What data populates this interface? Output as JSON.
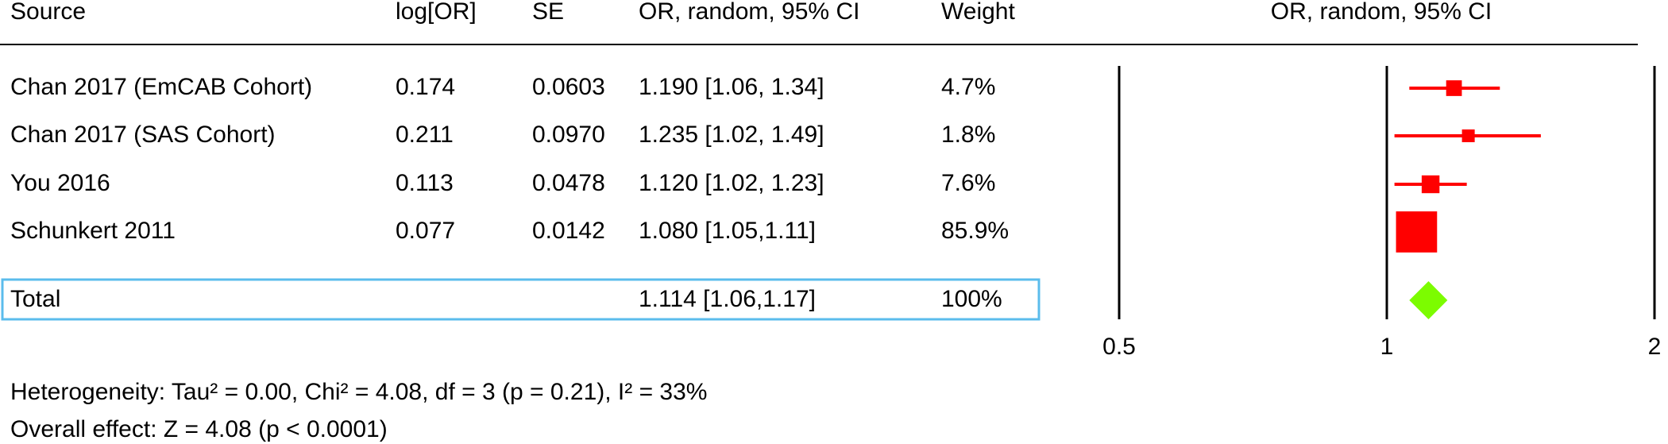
{
  "chart_data": {
    "type": "forest",
    "columns": [
      "Source",
      "log[OR]",
      "SE",
      "OR, random, 95% CI",
      "Weight"
    ],
    "plot_title": "OR, random, 95% CI",
    "studies": [
      {
        "source": "Chan 2017 (EmCAB Cohort)",
        "log_or": "0.174",
        "se": "0.0603",
        "or": 1.19,
        "ci_low": 1.06,
        "ci_high": 1.34,
        "or_label": "1.190 [1.06, 1.34]",
        "weight": 4.7,
        "weight_label": "4.7%"
      },
      {
        "source": "Chan 2017 (SAS Cohort)",
        "log_or": "0.211",
        "se": "0.0970",
        "or": 1.235,
        "ci_low": 1.02,
        "ci_high": 1.49,
        "or_label": "1.235 [1.02, 1.49]",
        "weight": 1.8,
        "weight_label": "1.8%"
      },
      {
        "source": "You 2016",
        "log_or": "0.113",
        "se": "0.0478",
        "or": 1.12,
        "ci_low": 1.02,
        "ci_high": 1.23,
        "or_label": "1.120 [1.02, 1.23]",
        "weight": 7.6,
        "weight_label": "7.6%"
      },
      {
        "source": "Schunkert 2011",
        "log_or": "0.077",
        "se": "0.0142",
        "or": 1.08,
        "ci_low": 1.05,
        "ci_high": 1.11,
        "or_label": "1.080 [1.05,1.11]",
        "weight": 85.9,
        "weight_label": "85.9%"
      }
    ],
    "total": {
      "source": "Total",
      "or": 1.114,
      "ci_low": 1.06,
      "ci_high": 1.17,
      "or_label": "1.114 [1.06,1.17]",
      "weight": 100,
      "weight_label": "100%"
    },
    "xlim": [
      0.5,
      2
    ],
    "xticks": [
      0.5,
      1,
      2
    ],
    "log_scale": true,
    "marker_color": "#ff0000",
    "total_color": "#7cfc00",
    "heterogeneity": "Heterogeneity: Tau² = 0.00, Chi² = 4.08, df = 3 (p = 0.21), I² = 33%",
    "overall_effect": "Overall effect: Z = 4.08 (p < 0.0001)"
  }
}
